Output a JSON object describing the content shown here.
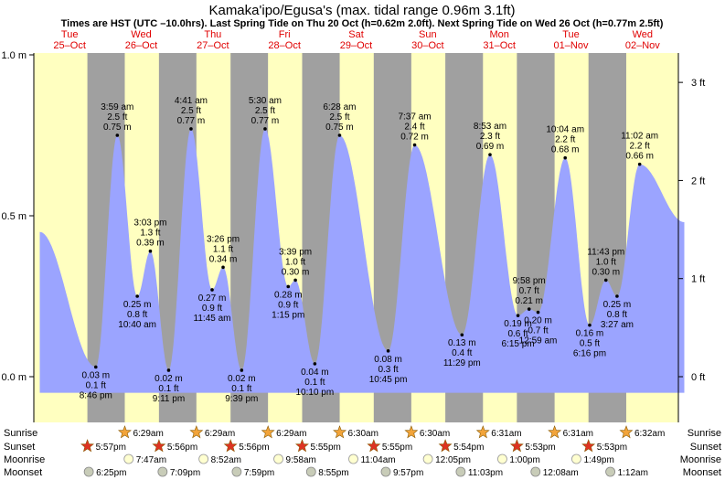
{
  "chart_data": {
    "type": "area",
    "title": "Kamaka'ipo/Egusa's (max. tidal range 0.96m 3.1ft)",
    "subtitle": "Times are HST (UTC –10.0hrs). Last Spring Tide on Thu 20 Oct (h=0.62m 2.0ft). Next Spring Tide on Wed 26 Oct (h=0.77m 2.5ft)",
    "colors": {
      "fill": "#9ba4ff",
      "day": "#ffffc0",
      "night": "#a0a0a0",
      "date": "#e00000",
      "sun": "#f2a43a",
      "sunset": "#dd3322"
    },
    "x_unit": "hours from 00:00 HST Tue 25 Oct",
    "days": [
      {
        "dow": "Tue",
        "date": "25–Oct"
      },
      {
        "dow": "Wed",
        "date": "26–Oct"
      },
      {
        "dow": "Thu",
        "date": "27–Oct"
      },
      {
        "dow": "Fri",
        "date": "28–Oct"
      },
      {
        "dow": "Sat",
        "date": "29–Oct"
      },
      {
        "dow": "Sun",
        "date": "30–Oct"
      },
      {
        "dow": "Mon",
        "date": "31–Oct"
      },
      {
        "dow": "Tue",
        "date": "01–Nov"
      },
      {
        "dow": "Wed",
        "date": "02–Nov"
      }
    ],
    "y_left": {
      "ticks": [
        {
          "v": 0.0,
          "label": "0.0 m"
        },
        {
          "v": 0.5,
          "label": "0.5 m"
        },
        {
          "v": 1.0,
          "label": "1.0 m"
        }
      ],
      "range": [
        -0.16,
        1.0
      ]
    },
    "y_right": {
      "ticks": [
        {
          "v": 0.0,
          "label": "0 ft"
        },
        {
          "v": 0.3048,
          "label": "1 ft"
        },
        {
          "v": 0.6096,
          "label": "2 ft"
        },
        {
          "v": 0.9144,
          "label": "3 ft"
        }
      ]
    },
    "curve_start": {
      "x": 2,
      "y": 0.45
    },
    "curve_end": {
      "x": 218.0,
      "y": 0.48
    },
    "tides": [
      {
        "x": 20.77,
        "y": 0.03,
        "kind": "low",
        "time": "8:46 pm",
        "ft": "0.1 ft",
        "m": "0.03 m"
      },
      {
        "x": 27.98,
        "y": 0.75,
        "kind": "high",
        "time": "3:59 am",
        "ft": "2.5 ft",
        "m": "0.75 m"
      },
      {
        "x": 34.67,
        "y": 0.25,
        "kind": "low",
        "time": "10:40 am",
        "ft": "0.8 ft",
        "m": "0.25 m"
      },
      {
        "x": 39.05,
        "y": 0.39,
        "kind": "high",
        "time": "3:03 pm",
        "ft": "1.3 ft",
        "m": "0.39 m"
      },
      {
        "x": 45.18,
        "y": 0.02,
        "kind": "low",
        "time": "9:11 pm",
        "ft": "0.1 ft",
        "m": "0.02 m"
      },
      {
        "x": 52.68,
        "y": 0.77,
        "kind": "high",
        "time": "4:41 am",
        "ft": "2.5 ft",
        "m": "0.77 m"
      },
      {
        "x": 59.75,
        "y": 0.27,
        "kind": "low",
        "time": "11:45 am",
        "ft": "0.9 ft",
        "m": "0.27 m"
      },
      {
        "x": 63.43,
        "y": 0.34,
        "kind": "high",
        "time": "3:26 pm",
        "ft": "1.1 ft",
        "m": "0.34 m"
      },
      {
        "x": 69.65,
        "y": 0.02,
        "kind": "low",
        "time": "9:39 pm",
        "ft": "0.1 ft",
        "m": "0.02 m"
      },
      {
        "x": 77.5,
        "y": 0.77,
        "kind": "high",
        "time": "5:30 am",
        "ft": "2.5 ft",
        "m": "0.77 m"
      },
      {
        "x": 85.25,
        "y": 0.28,
        "kind": "low",
        "time": "1:15 pm",
        "ft": "0.9 ft",
        "m": "0.28 m"
      },
      {
        "x": 87.65,
        "y": 0.3,
        "kind": "high",
        "time": "3:39 pm",
        "ft": "1.0 ft",
        "m": "0.30 m"
      },
      {
        "x": 94.17,
        "y": 0.04,
        "kind": "low",
        "time": "10:10 pm",
        "ft": "0.1 ft",
        "m": "0.04 m"
      },
      {
        "x": 102.47,
        "y": 0.75,
        "kind": "high",
        "time": "6:28 am",
        "ft": "2.5 ft",
        "m": "0.75 m"
      },
      {
        "x": 118.75,
        "y": 0.08,
        "kind": "low",
        "time": "10:45 pm",
        "ft": "0.3 ft",
        "m": "0.08 m"
      },
      {
        "x": 127.62,
        "y": 0.72,
        "kind": "high",
        "time": "7:37 am",
        "ft": "2.4 ft",
        "m": "0.72 m"
      },
      {
        "x": 143.48,
        "y": 0.13,
        "kind": "low",
        "time": "11:29 pm",
        "ft": "0.4 ft",
        "m": "0.13 m"
      },
      {
        "x": 152.88,
        "y": 0.69,
        "kind": "high",
        "time": "8:53 am",
        "ft": "2.3 ft",
        "m": "0.69 m"
      },
      {
        "x": 162.25,
        "y": 0.19,
        "kind": "low",
        "time": "6:15 pm",
        "ft": "0.6 ft",
        "m": "0.19 m"
      },
      {
        "x": 165.97,
        "y": 0.21,
        "kind": "high",
        "time": "9:58 pm",
        "ft": "0.7 ft",
        "m": "0.21 m"
      },
      {
        "x": 168.98,
        "y": 0.2,
        "kind": "low",
        "time": "12:59 am",
        "ft": "0.7 ft",
        "m": "0.20 m"
      },
      {
        "x": 178.07,
        "y": 0.68,
        "kind": "high",
        "time": "10:04 am",
        "ft": "2.2 ft",
        "m": "0.68 m"
      },
      {
        "x": 186.27,
        "y": 0.16,
        "kind": "low",
        "time": "6:16 pm",
        "ft": "0.5 ft",
        "m": "0.16 m"
      },
      {
        "x": 191.72,
        "y": 0.3,
        "kind": "high",
        "time": "11:43 pm",
        "ft": "1.0 ft",
        "m": "0.30 m"
      },
      {
        "x": 195.45,
        "y": 0.25,
        "kind": "low",
        "time": "3:27 am",
        "ft": "0.8 ft",
        "m": "0.25 m"
      },
      {
        "x": 203.03,
        "y": 0.66,
        "kind": "high",
        "time": "11:02 am",
        "ft": "2.2 ft",
        "m": "0.66 m"
      }
    ],
    "daylight": [
      {
        "rise": 0.0,
        "set": 17.95
      },
      {
        "rise": 30.48,
        "set": 41.93
      },
      {
        "rise": 54.48,
        "set": 65.93
      },
      {
        "rise": 78.48,
        "set": 89.92
      },
      {
        "rise": 102.5,
        "set": 113.92
      },
      {
        "rise": 126.5,
        "set": 137.9
      },
      {
        "rise": 150.52,
        "set": 161.88
      },
      {
        "rise": 174.52,
        "set": 185.88
      },
      {
        "rise": 198.53,
        "set": 218.0
      }
    ],
    "rows": {
      "labels": [
        "Sunrise",
        "Sunset",
        "Moonrise",
        "Moonset"
      ],
      "sunrise": [
        {
          "x": 30.48,
          "t": "6:29am"
        },
        {
          "x": 54.48,
          "t": "6:29am"
        },
        {
          "x": 78.48,
          "t": "6:29am"
        },
        {
          "x": 102.5,
          "t": "6:30am"
        },
        {
          "x": 126.5,
          "t": "6:30am"
        },
        {
          "x": 150.52,
          "t": "6:31am"
        },
        {
          "x": 174.52,
          "t": "6:31am"
        },
        {
          "x": 198.53,
          "t": "6:32am"
        }
      ],
      "sunset": [
        {
          "x": 17.95,
          "t": "5:57pm"
        },
        {
          "x": 41.93,
          "t": "5:56pm"
        },
        {
          "x": 65.93,
          "t": "5:56pm"
        },
        {
          "x": 89.92,
          "t": "5:55pm"
        },
        {
          "x": 113.92,
          "t": "5:55pm"
        },
        {
          "x": 137.9,
          "t": "5:54pm"
        },
        {
          "x": 161.88,
          "t": "5:53pm"
        },
        {
          "x": 185.88,
          "t": "5:53pm"
        }
      ],
      "moonrise": [
        {
          "x": 31.78,
          "t": "7:47am"
        },
        {
          "x": 56.87,
          "t": "8:52am"
        },
        {
          "x": 81.97,
          "t": "9:58am"
        },
        {
          "x": 107.07,
          "t": "11:04am"
        },
        {
          "x": 132.08,
          "t": "12:05pm"
        },
        {
          "x": 157.0,
          "t": "1:00pm"
        },
        {
          "x": 181.82,
          "t": "1:49pm"
        }
      ],
      "moonset": [
        {
          "x": 18.42,
          "t": "6:25pm"
        },
        {
          "x": 43.15,
          "t": "7:09pm"
        },
        {
          "x": 67.98,
          "t": "7:59pm"
        },
        {
          "x": 92.92,
          "t": "8:55pm"
        },
        {
          "x": 117.95,
          "t": "9:57pm"
        },
        {
          "x": 143.05,
          "t": "11:03pm"
        },
        {
          "x": 168.13,
          "t": "12:08am"
        },
        {
          "x": 193.2,
          "t": "1:12am"
        }
      ]
    }
  }
}
